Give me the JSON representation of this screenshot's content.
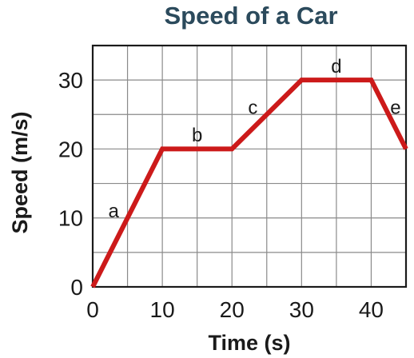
{
  "chart_data": {
    "type": "line",
    "title": "Speed of a Car",
    "xlabel": "Time (s)",
    "ylabel": "Speed (m/s)",
    "xlim": [
      0,
      45
    ],
    "ylim": [
      0,
      35
    ],
    "grid": true,
    "x_grid_step": 5,
    "y_grid_step": 5,
    "x_ticks": [
      0,
      10,
      20,
      30,
      40
    ],
    "y_ticks": [
      0,
      10,
      20,
      30
    ],
    "series": [
      {
        "x": [
          0,
          10,
          20,
          30,
          40,
          45
        ],
        "y": [
          0,
          20,
          20,
          30,
          30,
          20
        ],
        "color": "#cc1a1a"
      }
    ],
    "segment_labels": [
      {
        "text": "a",
        "x": 3,
        "y": 11
      },
      {
        "text": "b",
        "x": 15,
        "y": 22
      },
      {
        "text": "c",
        "x": 23,
        "y": 26
      },
      {
        "text": "d",
        "x": 35,
        "y": 32
      },
      {
        "text": "e",
        "x": 43.5,
        "y": 26
      }
    ]
  }
}
